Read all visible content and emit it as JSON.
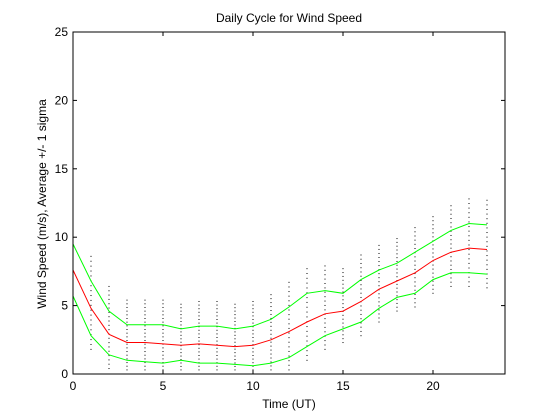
{
  "chart_data": {
    "type": "line",
    "title": "Daily Cycle for Wind Speed",
    "xlabel": "Time (UT)",
    "ylabel": "Wind Speed (m/s), Average +/- 1 sigma",
    "xlim": [
      0,
      24
    ],
    "ylim": [
      0,
      25
    ],
    "xticks": [
      0,
      5,
      10,
      15,
      20
    ],
    "yticks": [
      0,
      5,
      10,
      15,
      20,
      25
    ],
    "grid": false,
    "x": [
      0,
      1,
      2,
      3,
      4,
      5,
      6,
      7,
      8,
      9,
      10,
      11,
      12,
      13,
      14,
      15,
      16,
      17,
      18,
      19,
      20,
      21,
      22,
      23
    ],
    "series": [
      {
        "role": "average",
        "color": "#ff0000",
        "values": [
          7.6,
          4.8,
          2.9,
          2.3,
          2.3,
          2.2,
          2.1,
          2.2,
          2.1,
          2.0,
          2.1,
          2.5,
          3.1,
          3.8,
          4.4,
          4.6,
          5.3,
          6.2,
          6.8,
          7.4,
          8.3,
          8.9,
          9.2,
          9.1
        ]
      },
      {
        "role": "plus-one-sigma",
        "color": "#00ff00",
        "values": [
          9.5,
          6.8,
          4.6,
          3.6,
          3.6,
          3.6,
          3.3,
          3.5,
          3.5,
          3.3,
          3.5,
          4.0,
          4.9,
          5.9,
          6.1,
          5.9,
          6.9,
          7.6,
          8.1,
          8.9,
          9.7,
          10.5,
          11.0,
          10.9
        ]
      },
      {
        "role": "minus-one-sigma",
        "color": "#00ff00",
        "values": [
          5.7,
          2.8,
          1.4,
          1.0,
          0.9,
          0.8,
          1.0,
          0.8,
          0.8,
          0.7,
          0.6,
          0.8,
          1.2,
          2.0,
          2.8,
          3.3,
          3.8,
          4.8,
          5.6,
          5.9,
          6.9,
          7.4,
          7.4,
          7.3
        ]
      }
    ],
    "observations_color": "#000000",
    "observations_note": "dotted column of individual hourly values spanning roughly the low to high range at each hour"
  }
}
